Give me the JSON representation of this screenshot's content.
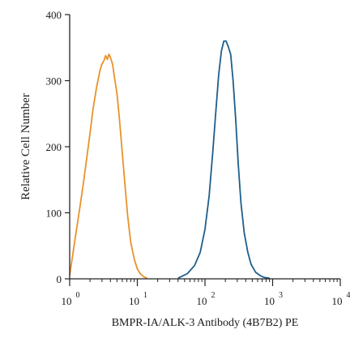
{
  "chart_data": {
    "type": "line",
    "xlabel": "BMPR-IA/ALK-3 Antibody (4B7B2) PE",
    "ylabel": "Relative Cell Number",
    "xscale": "log",
    "xlim": [
      1,
      10000
    ],
    "ylim": [
      0,
      400
    ],
    "grid": false,
    "legend": "none",
    "y_ticks": [
      {
        "value": 0,
        "label": "0"
      },
      {
        "value": 100,
        "label": "100"
      },
      {
        "value": 200,
        "label": "200"
      },
      {
        "value": 300,
        "label": "300"
      },
      {
        "value": 400,
        "label": "400"
      }
    ],
    "x_ticks": [
      {
        "value": 1,
        "base": "10",
        "exp": "0"
      },
      {
        "value": 10,
        "base": "10",
        "exp": "1"
      },
      {
        "value": 100,
        "base": "10",
        "exp": "2"
      },
      {
        "value": 1000,
        "base": "10",
        "exp": "3"
      },
      {
        "value": 10000,
        "base": "10",
        "exp": "4"
      }
    ],
    "series": [
      {
        "color": "#e8922a",
        "x": [
          1.0,
          1.2,
          1.4,
          1.6,
          1.8,
          2.0,
          2.2,
          2.5,
          2.8,
          3.0,
          3.2,
          3.4,
          3.6,
          3.8,
          4.0,
          4.3,
          4.6,
          5.0,
          5.4,
          6.0,
          6.6,
          7.2,
          8.0,
          9.0,
          10.0,
          11.0,
          12.5,
          14.0
        ],
        "y": [
          5,
          60,
          105,
          145,
          185,
          220,
          255,
          290,
          315,
          325,
          330,
          338,
          332,
          340,
          335,
          325,
          305,
          280,
          245,
          190,
          140,
          95,
          55,
          30,
          15,
          8,
          3,
          1
        ]
      },
      {
        "color": "#1e5e8c",
        "x": [
          40,
          55,
          70,
          85,
          100,
          115,
          130,
          145,
          160,
          175,
          190,
          205,
          220,
          240,
          260,
          285,
          310,
          340,
          380,
          430,
          480,
          560,
          650,
          760,
          900
        ],
        "y": [
          1,
          8,
          20,
          40,
          75,
          125,
          190,
          255,
          310,
          345,
          360,
          360,
          352,
          340,
          300,
          240,
          175,
          115,
          70,
          40,
          22,
          10,
          5,
          2,
          1
        ]
      }
    ]
  }
}
